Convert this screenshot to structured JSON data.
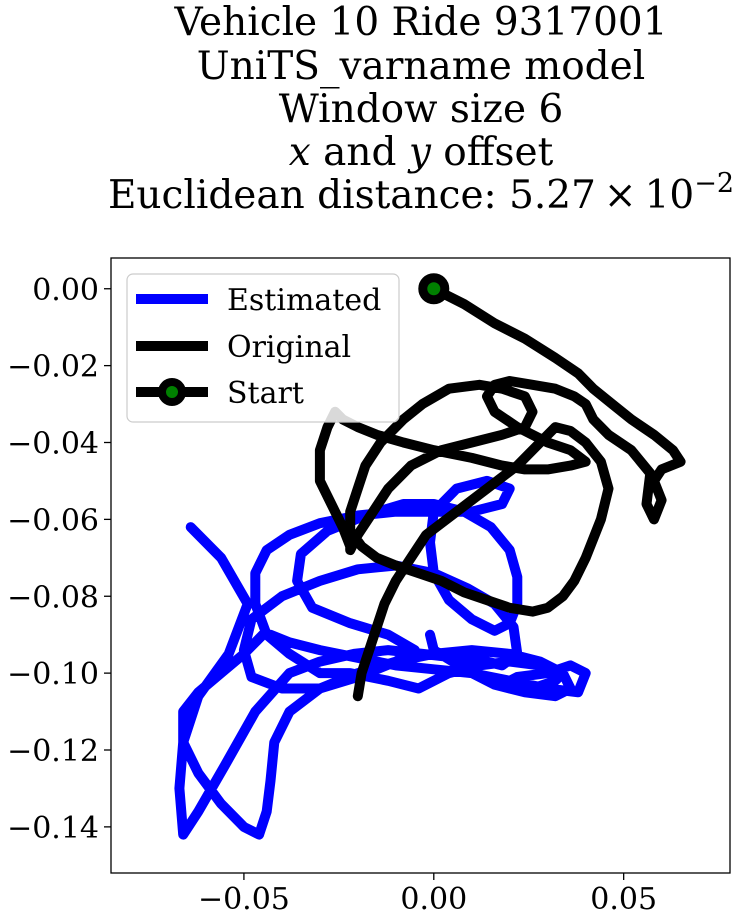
{
  "chart_data": {
    "type": "line",
    "title_lines": [
      "Vehicle 10 Ride 9317001",
      "UniTS_varname model",
      "Window size 6",
      "x and y offset",
      "Euclidean distance: 5.27 × 10^-2"
    ],
    "title": {
      "line1": "Vehicle 10 Ride 9317001",
      "line2": "UniTS_varname model",
      "line3": "Window size 6",
      "line4_var1": "x",
      "line4_and": " and ",
      "line4_var2": "y",
      "line4_rest": " offset",
      "line5_prefix": "Euclidean distance: 5.27",
      "line5_times": "×",
      "line5_base": "10",
      "line5_exp": "−2"
    },
    "xlabel": "",
    "ylabel": "",
    "xlim": [
      -0.085,
      0.078
    ],
    "ylim": [
      -0.152,
      0.008
    ],
    "x_ticks": [
      -0.05,
      0.0,
      0.05
    ],
    "x_tick_labels": [
      "−0.05",
      "0.00",
      "0.05"
    ],
    "y_ticks": [
      0.0,
      -0.02,
      -0.04,
      -0.06,
      -0.08,
      -0.1,
      -0.12,
      -0.14
    ],
    "y_tick_labels": [
      "0.00",
      "−0.02",
      "−0.04",
      "−0.06",
      "−0.08",
      "−0.10",
      "−0.12",
      "−0.14"
    ],
    "grid": false,
    "legend_position": "upper-left",
    "legend": {
      "estimated": "Estimated",
      "original": "Original",
      "start": "Start"
    },
    "series": [
      {
        "name": "Estimated",
        "color": "#0000ff",
        "x": [
          -0.064,
          -0.056,
          -0.049,
          -0.054,
          -0.062,
          -0.066,
          -0.067,
          -0.066,
          -0.062,
          -0.055,
          -0.047,
          -0.038,
          -0.03,
          -0.021,
          -0.012,
          -0.003,
          0.006,
          0.014,
          0.018,
          0.022,
          0.021,
          0.016,
          0.009,
          0.0,
          -0.01,
          -0.02,
          -0.03,
          -0.04,
          -0.048,
          -0.05,
          -0.048,
          -0.04,
          -0.03,
          -0.02,
          -0.01,
          -0.005,
          -0.012,
          -0.022,
          -0.032,
          -0.036,
          -0.035,
          -0.028,
          -0.018,
          -0.008,
          0.0,
          0.008,
          0.015,
          0.02,
          0.022,
          0.022,
          0.02,
          0.016,
          0.01,
          0.004,
          0.0,
          -0.001,
          0.0,
          0.006,
          0.014,
          0.02,
          0.018,
          0.01,
          0.0,
          -0.01,
          -0.02,
          -0.03,
          -0.038,
          -0.044,
          -0.047,
          -0.047,
          -0.044,
          -0.038,
          -0.03,
          -0.022,
          -0.012,
          -0.004,
          0.004,
          0.012,
          0.02,
          0.028,
          0.034,
          0.032,
          0.026,
          0.02,
          0.018,
          0.022,
          0.03,
          0.036,
          0.04,
          0.038,
          0.03,
          0.02,
          0.01,
          0.0,
          -0.01,
          -0.02,
          -0.03,
          -0.038,
          -0.043,
          -0.045,
          -0.05,
          -0.056,
          -0.062,
          -0.066,
          -0.066,
          -0.062,
          -0.056,
          -0.05,
          -0.046,
          -0.044,
          -0.043,
          -0.042,
          -0.038,
          -0.03,
          -0.02,
          -0.01,
          0.0,
          0.01,
          0.02,
          0.028,
          0.034,
          0.036,
          0.032,
          0.024,
          0.016,
          0.01,
          0.005,
          0.0,
          -0.001
        ],
        "y": [
          -0.062,
          -0.07,
          -0.082,
          -0.095,
          -0.106,
          -0.118,
          -0.13,
          -0.142,
          -0.136,
          -0.124,
          -0.11,
          -0.1,
          -0.097,
          -0.095,
          -0.094,
          -0.095,
          -0.096,
          -0.097,
          -0.098,
          -0.095,
          -0.088,
          -0.082,
          -0.078,
          -0.074,
          -0.072,
          -0.073,
          -0.076,
          -0.08,
          -0.086,
          -0.094,
          -0.101,
          -0.104,
          -0.104,
          -0.101,
          -0.097,
          -0.094,
          -0.09,
          -0.087,
          -0.083,
          -0.076,
          -0.069,
          -0.063,
          -0.059,
          -0.056,
          -0.056,
          -0.058,
          -0.062,
          -0.068,
          -0.075,
          -0.082,
          -0.087,
          -0.089,
          -0.086,
          -0.081,
          -0.074,
          -0.066,
          -0.058,
          -0.052,
          -0.05,
          -0.052,
          -0.056,
          -0.058,
          -0.058,
          -0.058,
          -0.059,
          -0.061,
          -0.064,
          -0.068,
          -0.074,
          -0.082,
          -0.09,
          -0.095,
          -0.1,
          -0.1,
          -0.102,
          -0.104,
          -0.1,
          -0.098,
          -0.097,
          -0.098,
          -0.1,
          -0.102,
          -0.104,
          -0.104,
          -0.103,
          -0.101,
          -0.1,
          -0.098,
          -0.1,
          -0.105,
          -0.104,
          -0.102,
          -0.1,
          -0.099,
          -0.098,
          -0.096,
          -0.094,
          -0.092,
          -0.09,
          -0.09,
          -0.095,
          -0.1,
          -0.105,
          -0.11,
          -0.118,
          -0.126,
          -0.134,
          -0.14,
          -0.142,
          -0.136,
          -0.128,
          -0.118,
          -0.11,
          -0.104,
          -0.1,
          -0.097,
          -0.095,
          -0.094,
          -0.095,
          -0.097,
          -0.1,
          -0.104,
          -0.106,
          -0.105,
          -0.103,
          -0.1,
          -0.097,
          -0.094,
          -0.09
        ]
      },
      {
        "name": "Original",
        "color": "#000000",
        "x": [
          0.0,
          0.008,
          0.016,
          0.024,
          0.032,
          0.038,
          0.042,
          0.047,
          0.052,
          0.058,
          0.063,
          0.065,
          0.06,
          0.058,
          0.06,
          0.058,
          0.056,
          0.057,
          0.052,
          0.046,
          0.042,
          0.04,
          0.037,
          0.032,
          0.026,
          0.02,
          0.016,
          0.014,
          0.016,
          0.022,
          0.03,
          0.036,
          0.04,
          0.036,
          0.03,
          0.024,
          0.018,
          0.01,
          0.0,
          -0.008,
          -0.015,
          -0.02,
          -0.024,
          -0.026,
          -0.028,
          -0.03,
          -0.03,
          -0.027,
          -0.024,
          -0.022,
          -0.022,
          -0.02,
          -0.016,
          -0.012,
          -0.006,
          0.002,
          0.01,
          0.018,
          0.024,
          0.026,
          0.024,
          0.018,
          0.012,
          0.004,
          -0.003,
          -0.008,
          -0.014,
          -0.018,
          -0.02,
          -0.022,
          -0.022,
          -0.019,
          -0.015,
          -0.01,
          -0.004,
          0.002,
          0.008,
          0.014,
          0.02,
          0.026,
          0.03,
          0.034,
          0.037,
          0.04,
          0.044,
          0.046,
          0.044,
          0.04,
          0.036,
          0.032,
          0.028,
          0.022,
          0.014,
          0.006,
          -0.002,
          -0.006,
          -0.01,
          -0.013,
          -0.015,
          -0.017,
          -0.019,
          -0.02
        ],
        "y": [
          0.0,
          -0.004,
          -0.009,
          -0.013,
          -0.018,
          -0.022,
          -0.026,
          -0.03,
          -0.034,
          -0.038,
          -0.042,
          -0.045,
          -0.047,
          -0.05,
          -0.055,
          -0.06,
          -0.056,
          -0.048,
          -0.042,
          -0.038,
          -0.034,
          -0.03,
          -0.028,
          -0.026,
          -0.025,
          -0.024,
          -0.025,
          -0.028,
          -0.032,
          -0.036,
          -0.04,
          -0.042,
          -0.045,
          -0.046,
          -0.047,
          -0.047,
          -0.046,
          -0.044,
          -0.042,
          -0.04,
          -0.038,
          -0.036,
          -0.034,
          -0.032,
          -0.036,
          -0.042,
          -0.05,
          -0.056,
          -0.062,
          -0.067,
          -0.068,
          -0.064,
          -0.058,
          -0.052,
          -0.046,
          -0.042,
          -0.04,
          -0.038,
          -0.036,
          -0.032,
          -0.028,
          -0.026,
          -0.025,
          -0.026,
          -0.03,
          -0.034,
          -0.04,
          -0.046,
          -0.052,
          -0.058,
          -0.063,
          -0.067,
          -0.07,
          -0.072,
          -0.074,
          -0.076,
          -0.079,
          -0.081,
          -0.083,
          -0.084,
          -0.083,
          -0.08,
          -0.076,
          -0.07,
          -0.06,
          -0.052,
          -0.045,
          -0.04,
          -0.037,
          -0.036,
          -0.04,
          -0.046,
          -0.052,
          -0.058,
          -0.064,
          -0.07,
          -0.076,
          -0.082,
          -0.088,
          -0.094,
          -0.1,
          -0.106
        ]
      }
    ],
    "start_point": {
      "x": 0.0,
      "y": 0.0
    },
    "colors": {
      "estimated": "#0000ff",
      "original": "#000000",
      "start_fill": "#008000",
      "start_edge": "#000000",
      "axes": "#000000"
    }
  }
}
